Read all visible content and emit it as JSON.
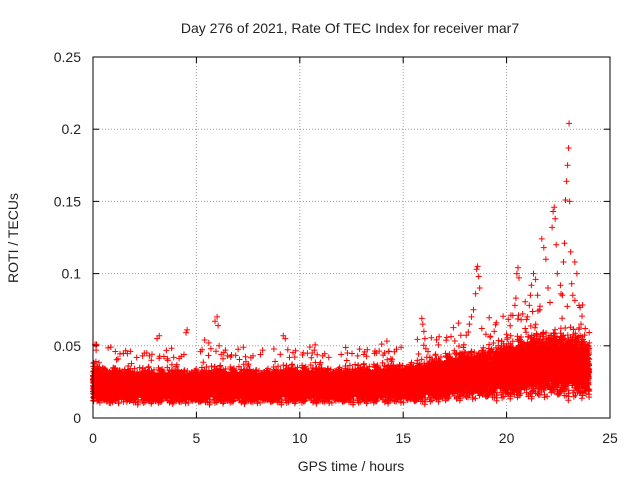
{
  "chart_data": {
    "type": "scatter",
    "title": "Day 276 of 2021, Rate Of TEC Index for receiver mar7",
    "xlabel": "GPS time / hours",
    "ylabel": "ROTI / TECUs",
    "xlim": [
      0,
      25
    ],
    "ylim": [
      0,
      0.25
    ],
    "x_ticks": [
      0,
      5,
      10,
      15,
      20,
      25
    ],
    "x_tick_labels": [
      "0",
      "5",
      "10",
      "15",
      "20",
      "25"
    ],
    "y_ticks": [
      0,
      0.05,
      0.1,
      0.15,
      0.2,
      0.25
    ],
    "y_tick_labels": [
      "0",
      "0.05",
      "0.1",
      "0.15",
      "0.2",
      "0.25"
    ],
    "grid": true,
    "marker": "+",
    "color": "#ff0000",
    "sampling_interval_hours": 0.004,
    "baseline_envelope": [
      {
        "x": 0,
        "low": 0.008,
        "high": 0.035
      },
      {
        "x": 2,
        "low": 0.008,
        "high": 0.032
      },
      {
        "x": 5,
        "low": 0.008,
        "high": 0.033
      },
      {
        "x": 8,
        "low": 0.008,
        "high": 0.033
      },
      {
        "x": 10,
        "low": 0.008,
        "high": 0.034
      },
      {
        "x": 13,
        "low": 0.008,
        "high": 0.034
      },
      {
        "x": 16,
        "low": 0.008,
        "high": 0.038
      },
      {
        "x": 18,
        "low": 0.01,
        "high": 0.045
      },
      {
        "x": 20,
        "low": 0.01,
        "high": 0.05
      },
      {
        "x": 22,
        "low": 0.01,
        "high": 0.06
      },
      {
        "x": 24,
        "low": 0.01,
        "high": 0.055
      }
    ],
    "outliers": [
      {
        "x": 0.1,
        "y": 0.051
      },
      {
        "x": 0.15,
        "y": 0.047
      },
      {
        "x": 1.7,
        "y": 0.036
      },
      {
        "x": 2.4,
        "y": 0.043
      },
      {
        "x": 2.6,
        "y": 0.045
      },
      {
        "x": 3.1,
        "y": 0.055
      },
      {
        "x": 3.2,
        "y": 0.057
      },
      {
        "x": 3.6,
        "y": 0.041
      },
      {
        "x": 4.4,
        "y": 0.044
      },
      {
        "x": 4.5,
        "y": 0.059
      },
      {
        "x": 4.55,
        "y": 0.061
      },
      {
        "x": 5.2,
        "y": 0.046
      },
      {
        "x": 5.4,
        "y": 0.054
      },
      {
        "x": 5.6,
        "y": 0.052
      },
      {
        "x": 5.7,
        "y": 0.048
      },
      {
        "x": 5.9,
        "y": 0.067
      },
      {
        "x": 6.0,
        "y": 0.07
      },
      {
        "x": 6.05,
        "y": 0.064
      },
      {
        "x": 6.1,
        "y": 0.05
      },
      {
        "x": 6.4,
        "y": 0.047
      },
      {
        "x": 6.5,
        "y": 0.043
      },
      {
        "x": 7.4,
        "y": 0.039
      },
      {
        "x": 8.1,
        "y": 0.044
      },
      {
        "x": 8.2,
        "y": 0.047
      },
      {
        "x": 9.2,
        "y": 0.057
      },
      {
        "x": 9.3,
        "y": 0.055
      },
      {
        "x": 9.5,
        "y": 0.042
      },
      {
        "x": 10.6,
        "y": 0.045
      },
      {
        "x": 10.7,
        "y": 0.047
      },
      {
        "x": 11.4,
        "y": 0.042
      },
      {
        "x": 12.0,
        "y": 0.044
      },
      {
        "x": 12.3,
        "y": 0.045
      },
      {
        "x": 12.8,
        "y": 0.043
      },
      {
        "x": 13.1,
        "y": 0.044
      },
      {
        "x": 13.7,
        "y": 0.045
      },
      {
        "x": 14.1,
        "y": 0.045
      },
      {
        "x": 14.3,
        "y": 0.046
      },
      {
        "x": 14.4,
        "y": 0.041
      },
      {
        "x": 14.9,
        "y": 0.049
      },
      {
        "x": 15.9,
        "y": 0.069
      },
      {
        "x": 15.95,
        "y": 0.065
      },
      {
        "x": 16.0,
        "y": 0.06
      },
      {
        "x": 16.05,
        "y": 0.055
      },
      {
        "x": 16.1,
        "y": 0.048
      },
      {
        "x": 16.2,
        "y": 0.046
      },
      {
        "x": 17.5,
        "y": 0.045
      },
      {
        "x": 17.8,
        "y": 0.044
      },
      {
        "x": 18.2,
        "y": 0.065
      },
      {
        "x": 18.3,
        "y": 0.07
      },
      {
        "x": 18.4,
        "y": 0.075
      },
      {
        "x": 18.5,
        "y": 0.086
      },
      {
        "x": 18.55,
        "y": 0.103
      },
      {
        "x": 18.6,
        "y": 0.105
      },
      {
        "x": 18.65,
        "y": 0.098
      },
      {
        "x": 18.7,
        "y": 0.09
      },
      {
        "x": 18.8,
        "y": 0.062
      },
      {
        "x": 19.0,
        "y": 0.058
      },
      {
        "x": 19.2,
        "y": 0.056
      },
      {
        "x": 19.4,
        "y": 0.06
      },
      {
        "x": 19.5,
        "y": 0.066
      },
      {
        "x": 19.6,
        "y": 0.05
      },
      {
        "x": 20.0,
        "y": 0.058
      },
      {
        "x": 20.2,
        "y": 0.057
      },
      {
        "x": 20.3,
        "y": 0.071
      },
      {
        "x": 20.4,
        "y": 0.078
      },
      {
        "x": 20.45,
        "y": 0.083
      },
      {
        "x": 20.5,
        "y": 0.1
      },
      {
        "x": 20.55,
        "y": 0.104
      },
      {
        "x": 20.6,
        "y": 0.097
      },
      {
        "x": 20.7,
        "y": 0.068
      },
      {
        "x": 20.9,
        "y": 0.062
      },
      {
        "x": 21.0,
        "y": 0.07
      },
      {
        "x": 21.1,
        "y": 0.078
      },
      {
        "x": 21.2,
        "y": 0.092
      },
      {
        "x": 21.3,
        "y": 0.1
      },
      {
        "x": 21.4,
        "y": 0.096
      },
      {
        "x": 21.5,
        "y": 0.085
      },
      {
        "x": 21.6,
        "y": 0.075
      },
      {
        "x": 21.7,
        "y": 0.124
      },
      {
        "x": 21.8,
        "y": 0.118
      },
      {
        "x": 21.9,
        "y": 0.11
      },
      {
        "x": 22.0,
        "y": 0.09
      },
      {
        "x": 22.1,
        "y": 0.08
      },
      {
        "x": 22.2,
        "y": 0.132
      },
      {
        "x": 22.25,
        "y": 0.143
      },
      {
        "x": 22.3,
        "y": 0.146
      },
      {
        "x": 22.35,
        "y": 0.138
      },
      {
        "x": 22.4,
        "y": 0.12
      },
      {
        "x": 22.45,
        "y": 0.1
      },
      {
        "x": 22.6,
        "y": 0.092
      },
      {
        "x": 22.7,
        "y": 0.085
      },
      {
        "x": 22.75,
        "y": 0.108
      },
      {
        "x": 22.8,
        "y": 0.121
      },
      {
        "x": 22.85,
        "y": 0.151
      },
      {
        "x": 22.9,
        "y": 0.164
      },
      {
        "x": 22.95,
        "y": 0.175
      },
      {
        "x": 23.0,
        "y": 0.187
      },
      {
        "x": 23.02,
        "y": 0.204
      },
      {
        "x": 23.05,
        "y": 0.15
      },
      {
        "x": 23.1,
        "y": 0.115
      },
      {
        "x": 23.15,
        "y": 0.093
      },
      {
        "x": 23.2,
        "y": 0.085
      },
      {
        "x": 23.3,
        "y": 0.108
      },
      {
        "x": 23.4,
        "y": 0.1
      },
      {
        "x": 23.5,
        "y": 0.078
      },
      {
        "x": 23.6,
        "y": 0.065
      },
      {
        "x": 23.8,
        "y": 0.062
      },
      {
        "x": 24.0,
        "y": 0.052
      }
    ]
  }
}
